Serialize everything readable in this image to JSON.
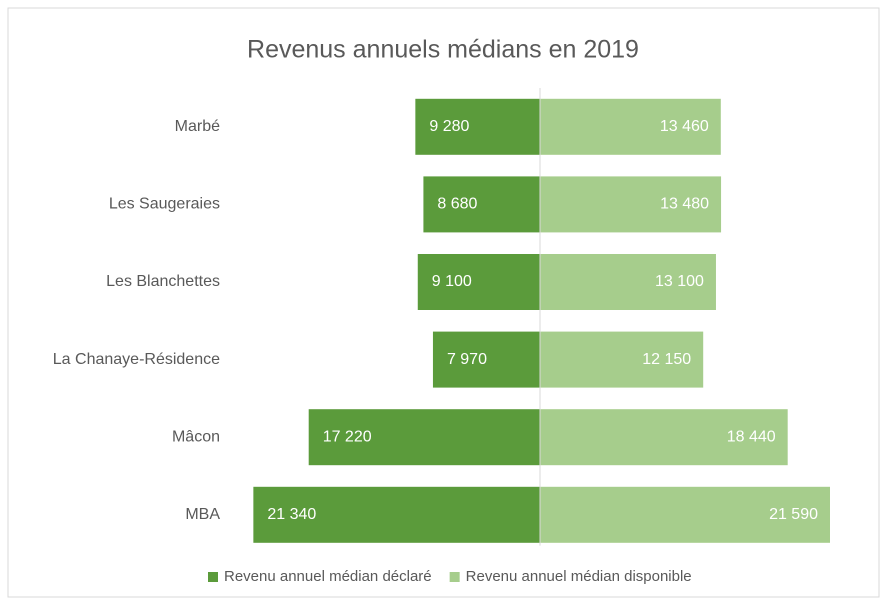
{
  "chart_data": {
    "type": "bar",
    "title": "Revenus annuels médians en 2019",
    "categories": [
      "Marbé",
      "Les Saugeraies",
      "Les Blanchettes",
      "La Chanaye-Résidence",
      "Mâcon",
      "MBA"
    ],
    "series": [
      {
        "name": "Revenu annuel médian déclaré",
        "color": "#5b9b3b",
        "values": [
          9280,
          8680,
          9100,
          7970,
          17220,
          21340
        ],
        "value_labels": [
          "9 280",
          "8 680",
          "9 100",
          "7 970",
          "17 220",
          "21 340"
        ]
      },
      {
        "name": "Revenu annuel médian disponible",
        "color": "#a6cd8c",
        "values": [
          13460,
          13480,
          13100,
          12150,
          18440,
          21590
        ],
        "value_labels": [
          "13 460",
          "13 480",
          "13 100",
          "12 150",
          "18 440",
          "21 590"
        ]
      }
    ],
    "legend": "bottom"
  }
}
